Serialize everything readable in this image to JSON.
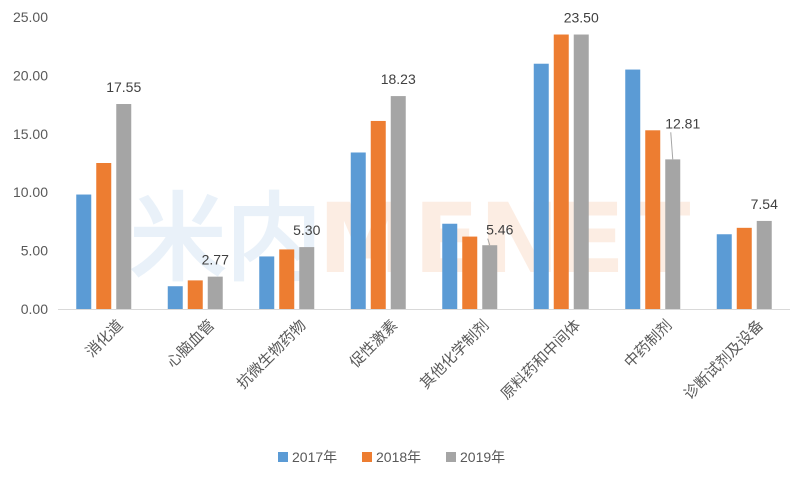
{
  "watermark": {
    "cn": "米内",
    "en": "MENET"
  },
  "chart_data": {
    "type": "bar",
    "title": "",
    "xlabel": "",
    "ylabel": "",
    "categories": [
      "消化道",
      "心脑血管",
      "抗微生物药物",
      "促性激素",
      "其他化学制剂",
      "原料药和中间体",
      "中药制剂",
      "诊断试剂及设备"
    ],
    "series": [
      {
        "name": "2017年",
        "color": "#5B9BD5",
        "values": [
          9.8,
          1.95,
          4.5,
          13.4,
          7.3,
          21.0,
          20.5,
          6.4
        ]
      },
      {
        "name": "2018年",
        "color": "#ED7D31",
        "values": [
          12.5,
          2.45,
          5.1,
          16.1,
          6.2,
          23.5,
          15.3,
          6.95
        ]
      },
      {
        "name": "2019年",
        "color": "#A5A5A5",
        "values": [
          17.55,
          2.77,
          5.3,
          18.23,
          5.46,
          23.5,
          12.81,
          7.54
        ]
      }
    ],
    "data_labels": {
      "series": "2019年",
      "texts": [
        "17.55",
        "2.77",
        "5.30",
        "18.23",
        "5.46",
        "23.50",
        "12.81",
        "7.54"
      ]
    },
    "yticks": [
      "0.00",
      "5.00",
      "10.00",
      "15.00",
      "20.00",
      "25.00"
    ],
    "ylim": [
      0,
      25
    ],
    "grid": false,
    "legend_position": "bottom"
  }
}
